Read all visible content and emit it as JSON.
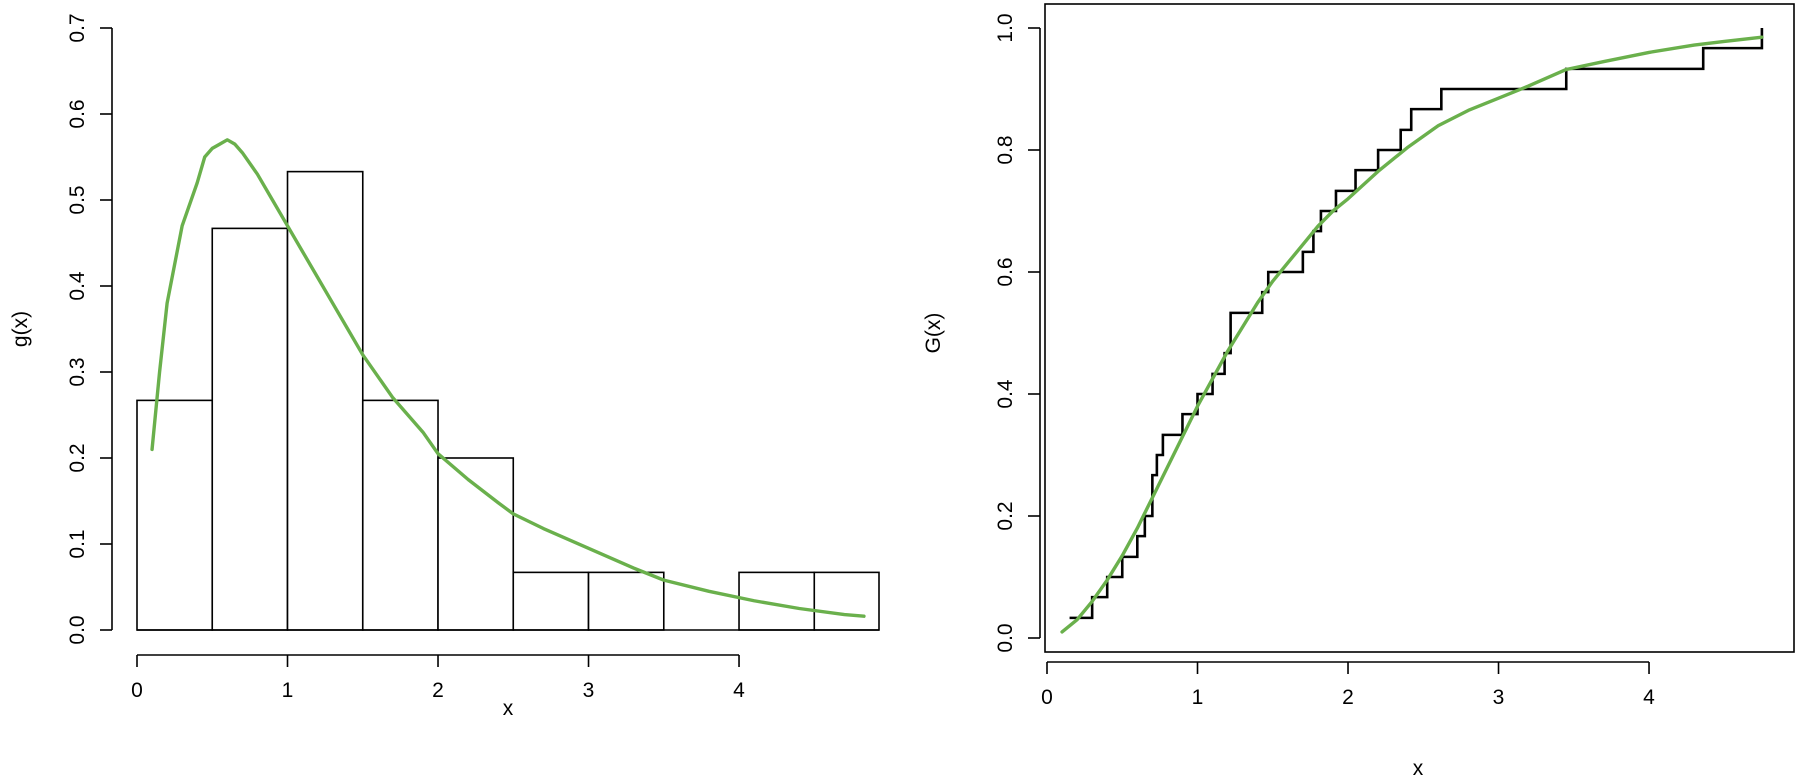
{
  "colors": {
    "fit_curve": "#6ab04c",
    "ink": "#000000",
    "background": "#ffffff"
  },
  "chart_data": [
    {
      "type": "bar",
      "subtype": "histogram-with-density",
      "xlabel": "x",
      "ylabel": "g(x)",
      "xlim": [
        0,
        4.93
      ],
      "ylim": [
        0,
        0.7
      ],
      "x_ticks": [
        0,
        1,
        2,
        3,
        4
      ],
      "y_ticks": [
        0.0,
        0.1,
        0.2,
        0.3,
        0.4,
        0.5,
        0.6,
        0.7
      ],
      "x_tick_labels": [
        "0",
        "1",
        "2",
        "3",
        "4"
      ],
      "y_tick_labels": [
        "0.0",
        "0.1",
        "0.2",
        "0.3",
        "0.4",
        "0.5",
        "0.6",
        "0.7"
      ],
      "x_axis_to": 4,
      "frame": false,
      "grid": false,
      "bins": [
        {
          "from": 0.0,
          "to": 0.5,
          "value": 0.267
        },
        {
          "from": 0.5,
          "to": 1.0,
          "value": 0.467
        },
        {
          "from": 1.0,
          "to": 1.5,
          "value": 0.533
        },
        {
          "from": 1.5,
          "to": 2.0,
          "value": 0.267
        },
        {
          "from": 2.0,
          "to": 2.5,
          "value": 0.2
        },
        {
          "from": 2.5,
          "to": 3.0,
          "value": 0.067
        },
        {
          "from": 3.0,
          "to": 3.5,
          "value": 0.067
        },
        {
          "from": 3.5,
          "to": 4.0,
          "value": 0.0
        },
        {
          "from": 4.0,
          "to": 4.5,
          "value": 0.067
        },
        {
          "from": 4.5,
          "to": 4.93,
          "value": 0.067
        }
      ],
      "series": [
        {
          "kind": "line",
          "color": "#6ab04c",
          "x": [
            0.1,
            0.15,
            0.2,
            0.3,
            0.4,
            0.45,
            0.5,
            0.55,
            0.6,
            0.65,
            0.7,
            0.8,
            0.9,
            1.0,
            1.1,
            1.2,
            1.3,
            1.4,
            1.5,
            1.7,
            1.9,
            2.0,
            2.2,
            2.4,
            2.5,
            2.7,
            3.0,
            3.3,
            3.5,
            3.8,
            4.1,
            4.4,
            4.7,
            4.83
          ],
          "y": [
            0.21,
            0.3,
            0.38,
            0.47,
            0.52,
            0.55,
            0.56,
            0.565,
            0.57,
            0.565,
            0.555,
            0.53,
            0.5,
            0.47,
            0.44,
            0.41,
            0.38,
            0.35,
            0.32,
            0.27,
            0.23,
            0.205,
            0.175,
            0.148,
            0.135,
            0.118,
            0.095,
            0.072,
            0.058,
            0.045,
            0.034,
            0.025,
            0.018,
            0.016
          ]
        }
      ]
    },
    {
      "type": "line",
      "subtype": "empirical-cdf-with-fit",
      "xlabel": "x",
      "ylabel": "G(x)",
      "xlim": [
        0,
        4.93
      ],
      "ylim": [
        0,
        1.0
      ],
      "x_ticks": [
        0,
        1,
        2,
        3,
        4
      ],
      "y_ticks": [
        0.0,
        0.2,
        0.4,
        0.6,
        0.8,
        1.0
      ],
      "x_tick_labels": [
        "0",
        "1",
        "2",
        "3",
        "4"
      ],
      "y_tick_labels": [
        "0.0",
        "0.2",
        "0.4",
        "0.6",
        "0.8",
        "1.0"
      ],
      "frame": true,
      "grid": false,
      "series": [
        {
          "kind": "step",
          "color": "#000000",
          "x": [
            0.15,
            0.3,
            0.4,
            0.5,
            0.6,
            0.65,
            0.7,
            0.73,
            0.77,
            0.9,
            1.0,
            1.1,
            1.18,
            1.22,
            1.43,
            1.47,
            1.7,
            1.77,
            1.82,
            1.92,
            2.05,
            2.2,
            2.35,
            2.42,
            2.62,
            3.45,
            4.36,
            4.75
          ],
          "y": [
            0.033,
            0.067,
            0.1,
            0.133,
            0.167,
            0.2,
            0.267,
            0.3,
            0.333,
            0.367,
            0.4,
            0.433,
            0.467,
            0.533,
            0.567,
            0.6,
            0.633,
            0.667,
            0.7,
            0.733,
            0.767,
            0.8,
            0.833,
            0.867,
            0.9,
            0.933,
            0.967,
            1.0
          ],
          "x_end": 4.75
        },
        {
          "kind": "line",
          "color": "#6ab04c",
          "x": [
            0.1,
            0.2,
            0.3,
            0.4,
            0.5,
            0.6,
            0.7,
            0.8,
            0.9,
            1.0,
            1.1,
            1.2,
            1.3,
            1.4,
            1.5,
            1.6,
            1.7,
            1.8,
            1.9,
            2.0,
            2.2,
            2.4,
            2.6,
            2.8,
            3.0,
            3.2,
            3.45,
            3.7,
            4.0,
            4.3,
            4.5,
            4.75
          ],
          "y": [
            0.01,
            0.03,
            0.06,
            0.095,
            0.135,
            0.18,
            0.23,
            0.28,
            0.33,
            0.38,
            0.425,
            0.47,
            0.51,
            0.55,
            0.585,
            0.615,
            0.645,
            0.675,
            0.7,
            0.72,
            0.765,
            0.805,
            0.84,
            0.865,
            0.885,
            0.905,
            0.932,
            0.945,
            0.96,
            0.972,
            0.978,
            0.985
          ]
        }
      ]
    }
  ]
}
